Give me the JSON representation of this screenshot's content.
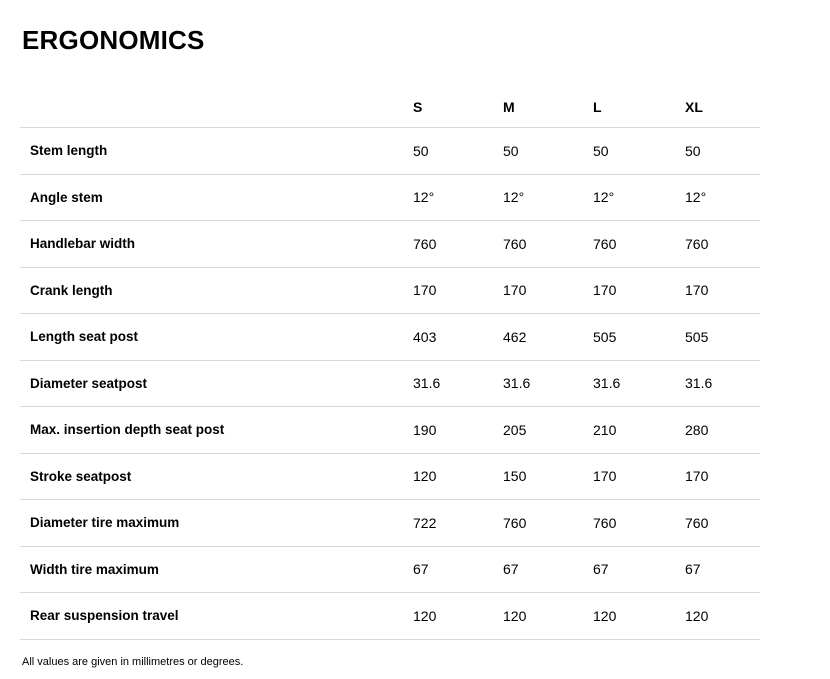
{
  "page": {
    "title": "ERGONOMICS",
    "footnote": "All values are given in millimetres or degrees."
  },
  "table": {
    "columns": [
      "S",
      "M",
      "L",
      "XL"
    ],
    "rows": [
      {
        "label": "Stem length",
        "values": [
          "50",
          "50",
          "50",
          "50"
        ]
      },
      {
        "label": "Angle stem",
        "values": [
          "12°",
          "12°",
          "12°",
          "12°"
        ]
      },
      {
        "label": "Handlebar width",
        "values": [
          "760",
          "760",
          "760",
          "760"
        ]
      },
      {
        "label": "Crank length",
        "values": [
          "170",
          "170",
          "170",
          "170"
        ]
      },
      {
        "label": "Length seat post",
        "values": [
          "403",
          "462",
          "505",
          "505"
        ]
      },
      {
        "label": "Diameter seatpost",
        "values": [
          "31.6",
          "31.6",
          "31.6",
          "31.6"
        ]
      },
      {
        "label": "Max. insertion depth seat post",
        "values": [
          "190",
          "205",
          "210",
          "280"
        ]
      },
      {
        "label": "Stroke seatpost",
        "values": [
          "120",
          "150",
          "170",
          "170"
        ]
      },
      {
        "label": "Diameter tire maximum",
        "values": [
          "722",
          "760",
          "760",
          "760"
        ]
      },
      {
        "label": "Width tire maximum",
        "values": [
          "67",
          "67",
          "67",
          "67"
        ]
      },
      {
        "label": "Rear suspension travel",
        "values": [
          "120",
          "120",
          "120",
          "120"
        ]
      }
    ]
  }
}
